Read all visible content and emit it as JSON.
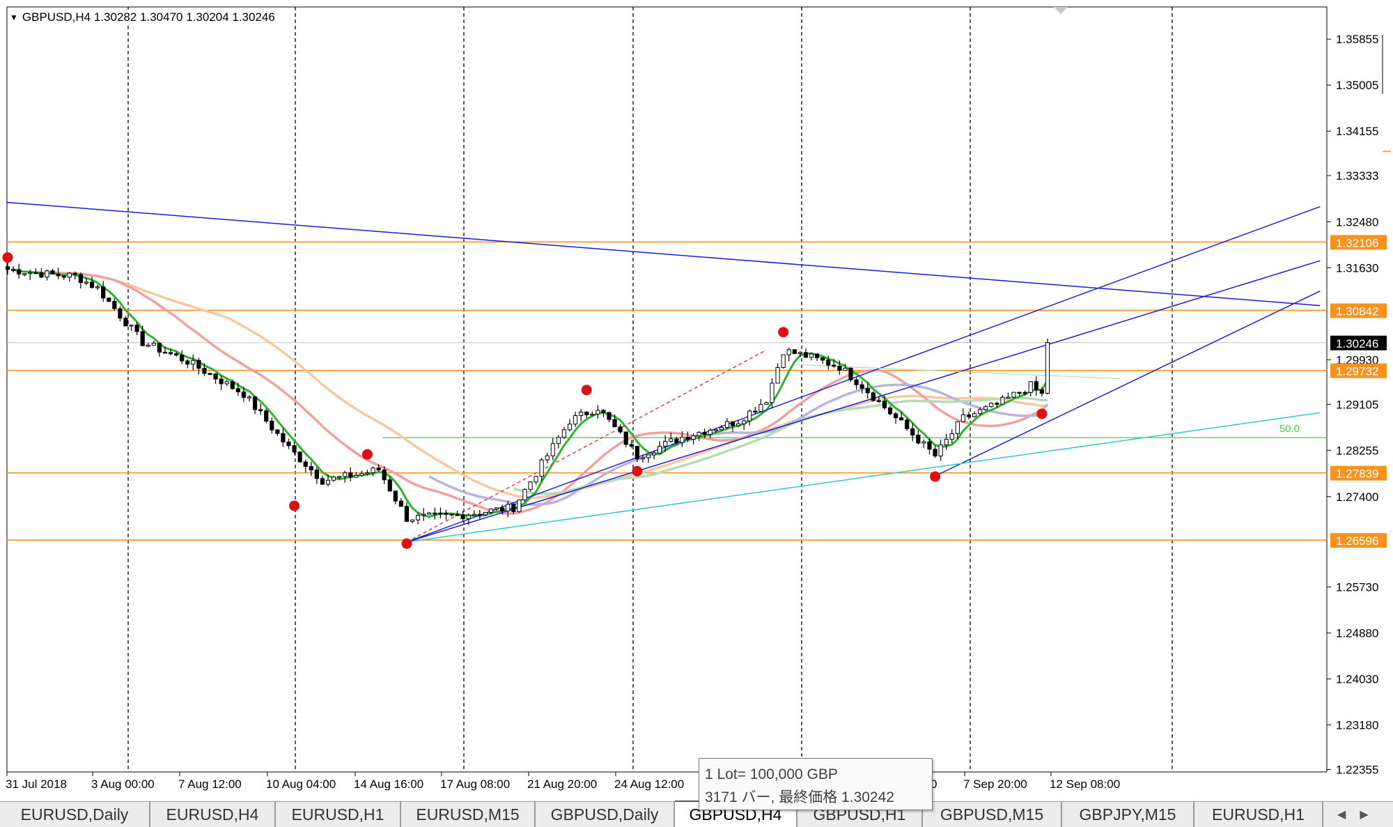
{
  "window": {
    "symbol_header": "GBPUSD,H4  1.30282 1.30470 1.30204 1.30246",
    "bid_line_price": 1.30246
  },
  "chart_data": {
    "type": "candlestick",
    "symbol": "GBPUSD",
    "timeframe": "H4",
    "ohlc_last": {
      "open": 1.30282,
      "high": 1.3047,
      "low": 1.30204,
      "close": 1.30246
    },
    "ylim": [
      1.2231,
      1.3645
    ],
    "y_ticks": [
      "1.35855",
      "1.35005",
      "1.34155",
      "1.33333",
      "1.32480",
      "1.31630",
      "1.29930",
      "1.29105",
      "1.28255",
      "1.27400",
      "1.25730",
      "1.24880",
      "1.24030",
      "1.23180",
      "1.22355"
    ],
    "x_ticks": [
      "31 Jul 2018",
      "3 Aug 00:00",
      "7 Aug 12:00",
      "10 Aug 04:00",
      "14 Aug 16:00",
      "17 Aug 08:00",
      "21 Aug 20:00",
      "24 Aug 12:00",
      "7 Sep 20:00",
      "12 Sep 08:00"
    ],
    "x_ticks_hidden_by_tooltip": [
      "",
      "0"
    ],
    "horizontal_levels": [
      {
        "price": 1.32106,
        "label": "1.32106",
        "color": "#f7931e"
      },
      {
        "price": 1.30842,
        "label": "1.30842",
        "color": "#f7931e"
      },
      {
        "price": 1.29732,
        "label": "1.29732",
        "color": "#f7931e"
      },
      {
        "price": 1.27839,
        "label": "1.27839",
        "color": "#f7931e"
      },
      {
        "price": 1.26596,
        "label": "1.26596",
        "color": "#f7931e"
      }
    ],
    "current_price_label": "1.30246",
    "fibo_label": "50.0",
    "fibo_price": 1.2849,
    "swing_points": [
      {
        "bar": 0,
        "price": 1.3182
      },
      {
        "bar": 51,
        "price": 1.2723
      },
      {
        "bar": 64,
        "price": 1.2818
      },
      {
        "bar": 71,
        "price": 1.2653
      },
      {
        "bar": 103,
        "price": 1.2937
      },
      {
        "bar": 112,
        "price": 1.2787
      },
      {
        "bar": 138,
        "price": 1.3044
      },
      {
        "bar": 165,
        "price": 1.2777
      },
      {
        "bar": 184,
        "price": 1.2893
      }
    ]
  },
  "tooltip": {
    "line1": "1 Lot= 100,000 GBP",
    "line2": "3171 バー, 最終価格 1.30242"
  },
  "tabs": [
    {
      "label": "EURUSD,Daily",
      "active": false
    },
    {
      "label": "EURUSD,H4",
      "active": false
    },
    {
      "label": "EURUSD,H1",
      "active": false
    },
    {
      "label": "EURUSD,M15",
      "active": false
    },
    {
      "label": "GBPUSD,Daily",
      "active": false
    },
    {
      "label": "GBPUSD,H4",
      "active": true
    },
    {
      "label": "GBPUSD,H1",
      "active": false
    },
    {
      "label": "GBPUSD,M15",
      "active": false
    },
    {
      "label": "GBPJPY,M15",
      "active": false
    },
    {
      "label": "EURUSD,H1",
      "active": false
    }
  ],
  "colors": {
    "candle_color": "#000000",
    "level_color": "#f7931e",
    "trendline_color": "#1a1ad6",
    "ma_fast": "#2db32d",
    "ma_mid": "#f0a0a0",
    "ma_slow": "#f7c9a0",
    "ma_lilac": "#b8b4e0",
    "ma_pale_green": "#b6dcb6",
    "fibo_color": "#44cc44",
    "teal_line": "#33c6c6",
    "swing_marker": "#e01010"
  }
}
